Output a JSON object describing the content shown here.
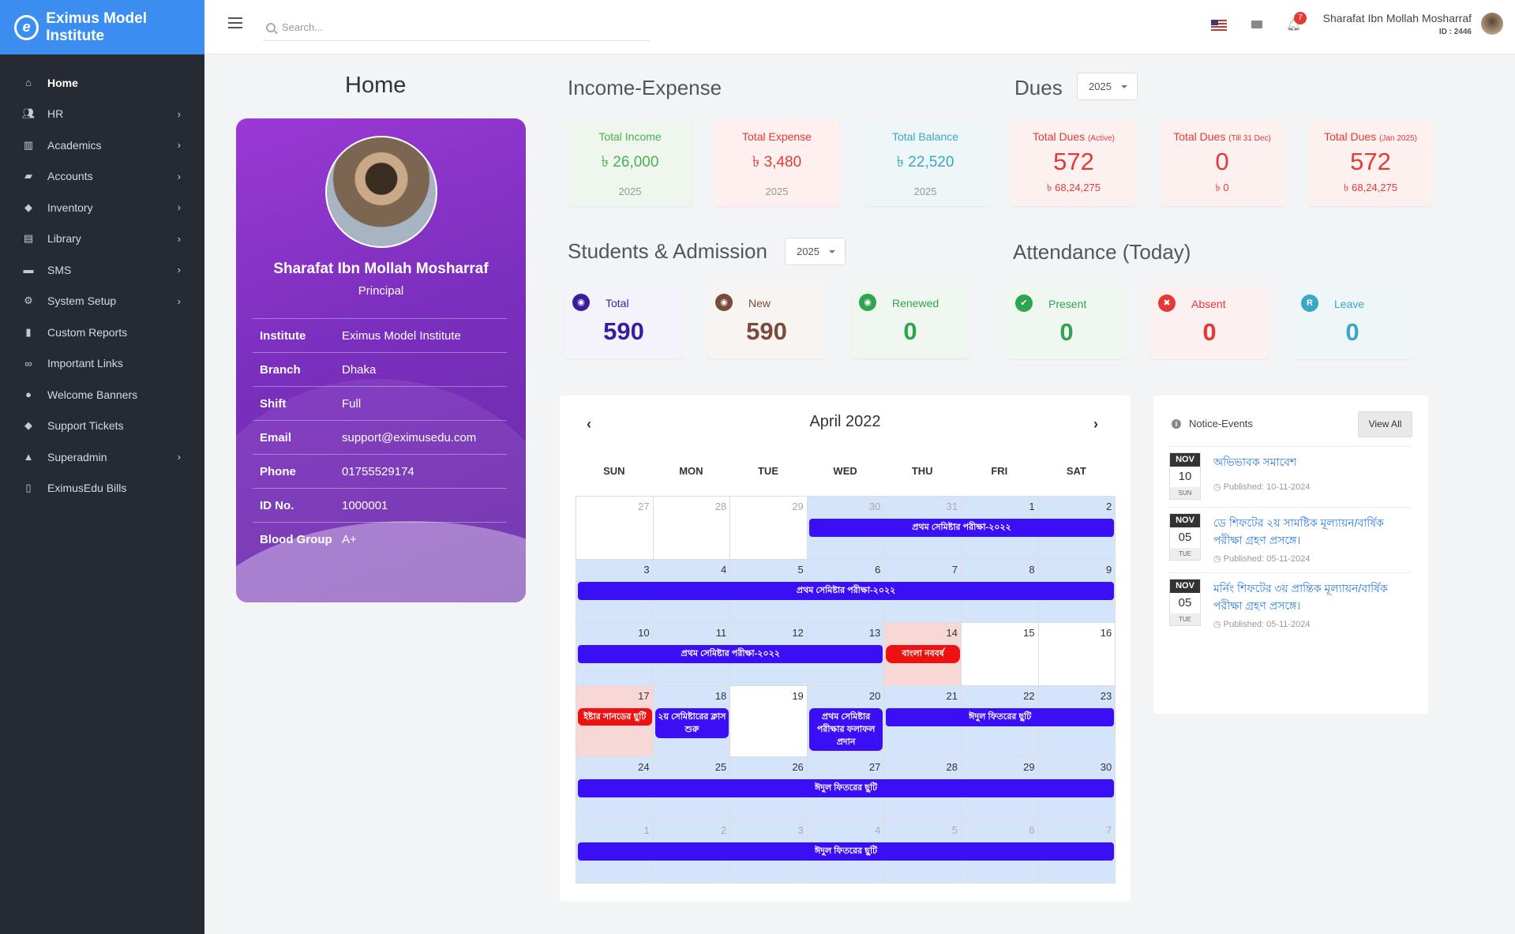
{
  "app": {
    "brand": "Eximus Model Institute"
  },
  "sidebar": {
    "items": [
      {
        "label": "Home",
        "icon": "home-icon",
        "active": true,
        "has_sub": false
      },
      {
        "label": "HR",
        "icon": "users-icon",
        "has_sub": true
      },
      {
        "label": "Academics",
        "icon": "school-icon",
        "has_sub": true
      },
      {
        "label": "Accounts",
        "icon": "folder-icon",
        "has_sub": true
      },
      {
        "label": "Inventory",
        "icon": "cubes-icon",
        "has_sub": true
      },
      {
        "label": "Library",
        "icon": "books-icon",
        "has_sub": true
      },
      {
        "label": "SMS",
        "icon": "comment-icon",
        "has_sub": true
      },
      {
        "label": "System Setup",
        "icon": "cogs-icon",
        "has_sub": true
      },
      {
        "label": "Custom Reports",
        "icon": "file-icon",
        "has_sub": false
      },
      {
        "label": "Important Links",
        "icon": "link-icon",
        "has_sub": false
      },
      {
        "label": "Welcome Banners",
        "icon": "balloon-icon",
        "has_sub": false
      },
      {
        "label": "Support Tickets",
        "icon": "ticket-icon",
        "has_sub": false
      },
      {
        "label": "Superadmin",
        "icon": "user-shield-icon",
        "has_sub": true
      },
      {
        "label": "EximusEdu Bills",
        "icon": "receipt-icon",
        "has_sub": false
      }
    ]
  },
  "topbar": {
    "search_placeholder": "Search...",
    "notification_count": "7",
    "user_name": "Sharafat Ibn Mollah Mosharraf",
    "user_id": "ID : 2446"
  },
  "home": {
    "title": "Home"
  },
  "profile": {
    "name": "Sharafat Ibn Mollah Mosharraf",
    "role": "Principal",
    "rows": [
      {
        "k": "Institute",
        "v": "Eximus Model Institute"
      },
      {
        "k": "Branch",
        "v": "Dhaka"
      },
      {
        "k": "Shift",
        "v": "Full"
      },
      {
        "k": "Email",
        "v": "support@eximusedu.com"
      },
      {
        "k": "Phone",
        "v": "01755529174"
      },
      {
        "k": "ID No.",
        "v": "1000001"
      },
      {
        "k": "Blood Group",
        "v": "A+"
      }
    ]
  },
  "income_expense": {
    "title": "Income-Expense",
    "cards": [
      {
        "label": "Total Income",
        "value": "৳ 26,000",
        "year": "2025",
        "color": "#4caf50",
        "bg": "#eef6ee"
      },
      {
        "label": "Total Expense",
        "value": "৳ 3,480",
        "year": "2025",
        "color": "#e53935",
        "bg": "#fdf0ee"
      },
      {
        "label": "Total Balance",
        "value": "৳ 22,520",
        "year": "2025",
        "color": "#3aa7c6",
        "bg": "#eef6f7"
      }
    ]
  },
  "dues": {
    "title": "Dues",
    "year": "2025",
    "cards": [
      {
        "label": "Total Dues",
        "note": "(Active)",
        "value": "572",
        "amount": "৳ 68,24,275"
      },
      {
        "label": "Total Dues",
        "note": "(Till 31 Dec)",
        "value": "0",
        "amount": "৳ 0"
      },
      {
        "label": "Total Dues",
        "note": "(Jan 2025)",
        "value": "572",
        "amount": "৳ 68,24,275"
      }
    ]
  },
  "students": {
    "title": "Students & Admission",
    "year": "2025",
    "cards": [
      {
        "label": "Total",
        "value": "590",
        "color": "#3a1d9c",
        "bg": "#f4f2fa",
        "icon": "user-circle-icon"
      },
      {
        "label": "New",
        "value": "590",
        "color": "#7a4a3d",
        "bg": "#f8f4f1",
        "icon": "user-new-icon"
      },
      {
        "label": "Renewed",
        "value": "0",
        "color": "#2ea44f",
        "bg": "#f0f7f0",
        "icon": "user-renew-icon"
      }
    ]
  },
  "attendance": {
    "title": "Attendance (Today)",
    "cards": [
      {
        "label": "Present",
        "value": "0",
        "color": "#2ea44f",
        "bg": "#f0f7f0",
        "icon_glyph": "✔",
        "icon": "check-circle-icon"
      },
      {
        "label": "Absent",
        "value": "0",
        "color": "#e53935",
        "bg": "#fcf0f0",
        "icon_glyph": "✖",
        "icon": "x-circle-icon"
      },
      {
        "label": "Leave",
        "value": "0",
        "color": "#3aa7c6",
        "bg": "#eef6f7",
        "icon_glyph": "R",
        "icon": "leave-circle-icon"
      }
    ]
  },
  "calendar": {
    "title": "April 2022",
    "prev": "‹",
    "next": "›",
    "days": [
      "SUN",
      "MON",
      "TUE",
      "WED",
      "THU",
      "FRI",
      "SAT"
    ],
    "weeks": [
      [
        [
          "27",
          1,
          "w"
        ],
        [
          "28",
          1,
          "w"
        ],
        [
          "29",
          1,
          "w"
        ],
        [
          "30",
          1,
          "b"
        ],
        [
          "31",
          1,
          "b"
        ],
        [
          "1",
          0,
          "b"
        ],
        [
          "2",
          0,
          "b"
        ]
      ],
      [
        [
          "3",
          0,
          "b"
        ],
        [
          "4",
          0,
          "b"
        ],
        [
          "5",
          0,
          "b"
        ],
        [
          "6",
          0,
          "b"
        ],
        [
          "7",
          0,
          "b"
        ],
        [
          "8",
          0,
          "b"
        ],
        [
          "9",
          0,
          "b"
        ]
      ],
      [
        [
          "10",
          0,
          "b"
        ],
        [
          "11",
          0,
          "b"
        ],
        [
          "12",
          0,
          "b"
        ],
        [
          "13",
          0,
          "b"
        ],
        [
          "14",
          0,
          "p"
        ],
        [
          "15",
          0,
          "w"
        ],
        [
          "16",
          0,
          "w"
        ]
      ],
      [
        [
          "17",
          0,
          "p"
        ],
        [
          "18",
          0,
          "b"
        ],
        [
          "19",
          0,
          "w"
        ],
        [
          "20",
          0,
          "b"
        ],
        [
          "21",
          0,
          "b"
        ],
        [
          "22",
          0,
          "b"
        ],
        [
          "23",
          0,
          "b"
        ]
      ],
      [
        [
          "24",
          0,
          "b"
        ],
        [
          "25",
          0,
          "b"
        ],
        [
          "26",
          0,
          "b"
        ],
        [
          "27",
          0,
          "b"
        ],
        [
          "28",
          0,
          "b"
        ],
        [
          "29",
          0,
          "b"
        ],
        [
          "30",
          0,
          "b"
        ]
      ],
      [
        [
          "1",
          1,
          "b"
        ],
        [
          "2",
          1,
          "b"
        ],
        [
          "3",
          1,
          "b"
        ],
        [
          "4",
          1,
          "b"
        ],
        [
          "5",
          1,
          "b"
        ],
        [
          "6",
          1,
          "b"
        ],
        [
          "7",
          1,
          "b"
        ]
      ]
    ],
    "events": [
      {
        "title": "প্রথম সেমিষ্টার পরীক্ষা-২০২২",
        "week": 0,
        "start": 3,
        "end": 6,
        "color": "b"
      },
      {
        "title": "প্রথম সেমিষ্টার পরীক্ষা-২০২২",
        "week": 1,
        "start": 0,
        "end": 6,
        "color": "b"
      },
      {
        "title": "প্রথম সেমিষ্টার পরীক্ষা-২০২২",
        "week": 2,
        "start": 0,
        "end": 3,
        "color": "b"
      },
      {
        "title": "বাংলা নববর্ষ",
        "week": 2,
        "start": 4,
        "end": 4,
        "color": "r"
      },
      {
        "title": "ইষ্টার সানডের ছুটি",
        "week": 3,
        "start": 0,
        "end": 0,
        "color": "r",
        "tall": true
      },
      {
        "title": "২য় সেমিষ্টারের ক্লাস শুরু",
        "week": 3,
        "start": 1,
        "end": 1,
        "color": "b",
        "tall": true
      },
      {
        "title": "প্রথম সেমিষ্টার পরীক্ষার ফলাফল প্রদান",
        "week": 3,
        "start": 3,
        "end": 3,
        "color": "b",
        "tall": true
      },
      {
        "title": "ঈদুল ফিতরের ছুটি",
        "week": 3,
        "start": 4,
        "end": 6,
        "color": "b"
      },
      {
        "title": "ঈদুল ফিতরের ছুটি",
        "week": 4,
        "start": 0,
        "end": 6,
        "color": "b"
      },
      {
        "title": "ঈদুল ফিতরের ছুটি",
        "week": 5,
        "start": 0,
        "end": 6,
        "color": "b"
      }
    ]
  },
  "notices": {
    "title": "Notice-Events",
    "view_all": "View All",
    "items": [
      {
        "month": "NOV",
        "day": "10",
        "wday": "SUN",
        "title": "অভিভাবক সমাবেশ",
        "published": "Published: 10-11-2024"
      },
      {
        "month": "NOV",
        "day": "05",
        "wday": "TUE",
        "title": "ডে শিফটের ২য় সামষ্টিক মূল্যায়ন/বার্ষিক পরীক্ষা গ্রহণ প্রসঙ্গে।",
        "published": "Published: 05-11-2024"
      },
      {
        "month": "NOV",
        "day": "05",
        "wday": "TUE",
        "title": "মর্নিং শিফটের ৩য় প্রান্তিক মূল্যায়ন/বার্ষিক পরীক্ষা গ্রহণ প্রসঙ্গে।",
        "published": "Published: 05-11-2024"
      }
    ]
  }
}
